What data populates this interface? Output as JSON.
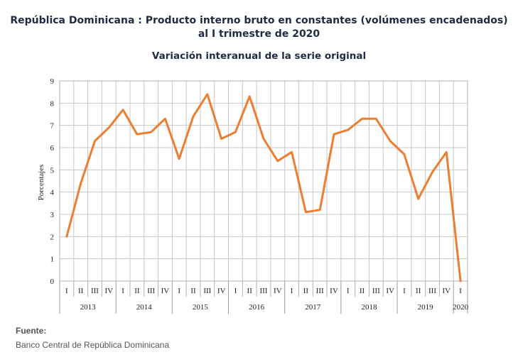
{
  "chart_data": {
    "type": "line",
    "title": "República Dominicana : Producto interno bruto en constantes (volúmenes encadenados)",
    "title_line2": "al I trimestre de 2020",
    "subtitle": "Variación interanual de la serie original",
    "ylabel": "Porcentajes",
    "ylim": [
      0,
      9
    ],
    "yticks": [
      "0",
      "1",
      "2",
      "3",
      "4",
      "5",
      "6",
      "7",
      "8",
      "9"
    ],
    "grid": true,
    "line_color": "#ed7d31",
    "quarter_labels": [
      "I",
      "II",
      "III",
      "IV"
    ],
    "years": [
      {
        "label": "2013",
        "quarters": 4
      },
      {
        "label": "2014",
        "quarters": 4
      },
      {
        "label": "2015",
        "quarters": 4
      },
      {
        "label": "2016",
        "quarters": 4
      },
      {
        "label": "2017",
        "quarters": 4
      },
      {
        "label": "2018",
        "quarters": 4
      },
      {
        "label": "2019",
        "quarters": 4
      },
      {
        "label": "2020",
        "quarters": 1
      }
    ],
    "values": [
      2.0,
      4.4,
      6.3,
      6.9,
      7.7,
      6.6,
      6.7,
      7.3,
      5.5,
      7.4,
      8.4,
      6.4,
      6.7,
      8.3,
      6.4,
      5.4,
      5.8,
      3.1,
      3.2,
      6.6,
      6.8,
      7.3,
      7.3,
      6.3,
      5.7,
      3.7,
      4.9,
      5.8,
      0.0
    ]
  },
  "source": {
    "label": "Fuente:",
    "text": "Banco Central de República Dominicana"
  }
}
